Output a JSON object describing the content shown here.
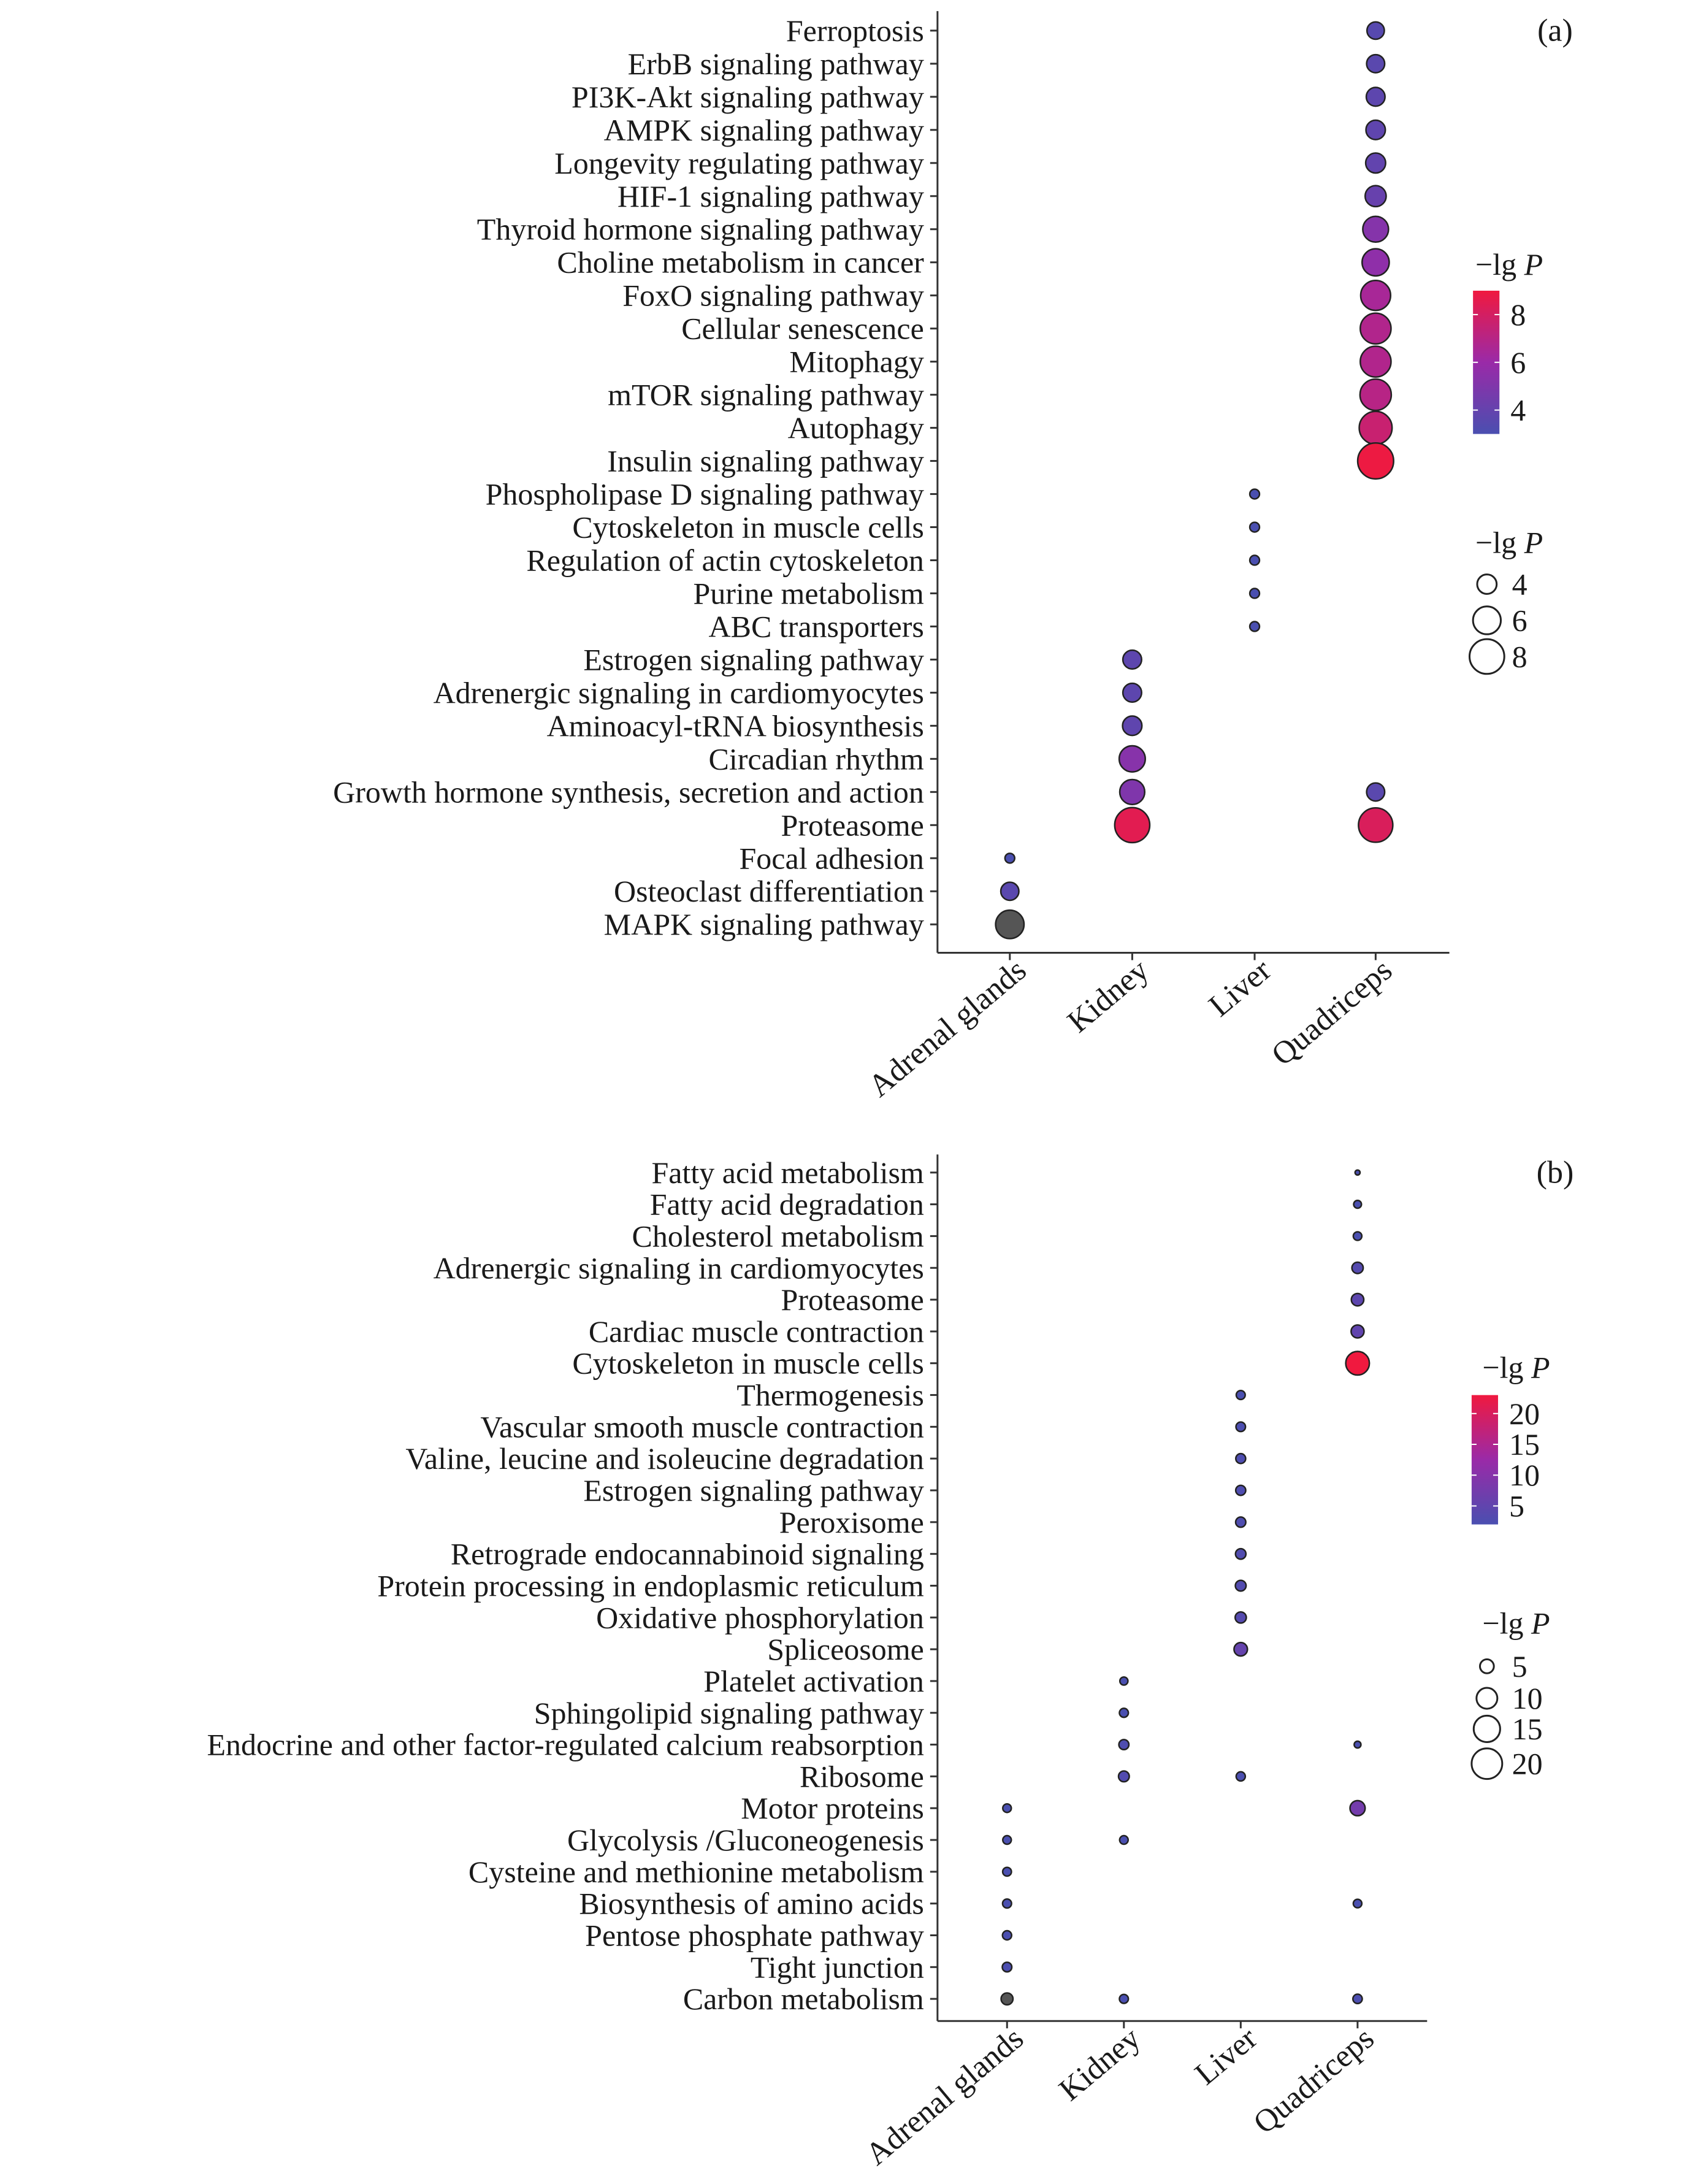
{
  "chart_data": [
    {
      "panel_label": "(a)",
      "type": "scatter",
      "x_categories": [
        "Adrenal glands",
        "Kidney",
        "Liver",
        "Quadriceps"
      ],
      "pathways": [
        "Ferroptosis",
        "ErbB signaling pathway",
        "PI3K-Akt signaling pathway",
        "AMPK signaling pathway",
        "Longevity regulating pathway",
        "HIF-1 signaling pathway",
        "Thyroid hormone signaling pathway",
        "Choline metabolism in cancer",
        "FoxO signaling pathway",
        "Cellular senescence",
        "Mitophagy",
        "mTOR signaling pathway",
        "Autophagy",
        "Insulin signaling pathway",
        "Phospholipase D signaling pathway",
        "Cytoskeleton in muscle cells",
        "Regulation of actin cytoskeleton",
        "Purine metabolism",
        "ABC transporters",
        "Estrogen signaling pathway",
        "Adrenergic signaling in cardiomyocytes",
        "Aminoacyl-tRNA biosynthesis",
        "Circadian rhythm",
        "Growth hormone synthesis, secretion and action",
        "Proteasome",
        "Focal adhesion",
        "Osteoclast differentiation",
        "MAPK signaling pathway"
      ],
      "points": [
        {
          "pathway": "Ferroptosis",
          "x": "Quadriceps",
          "value": 3.5
        },
        {
          "pathway": "ErbB signaling pathway",
          "x": "Quadriceps",
          "value": 3.6
        },
        {
          "pathway": "PI3K-Akt signaling pathway",
          "x": "Quadriceps",
          "value": 3.7
        },
        {
          "pathway": "AMPK signaling pathway",
          "x": "Quadriceps",
          "value": 3.8
        },
        {
          "pathway": "Longevity regulating pathway",
          "x": "Quadriceps",
          "value": 3.9
        },
        {
          "pathway": "HIF-1 signaling pathway",
          "x": "Quadriceps",
          "value": 4.1
        },
        {
          "pathway": "Thyroid hormone signaling pathway",
          "x": "Quadriceps",
          "value": 5.2
        },
        {
          "pathway": "Choline metabolism in cancer",
          "x": "Quadriceps",
          "value": 5.6
        },
        {
          "pathway": "FoxO signaling pathway",
          "x": "Quadriceps",
          "value": 6.5
        },
        {
          "pathway": "Cellular senescence",
          "x": "Quadriceps",
          "value": 6.8
        },
        {
          "pathway": "Mitophagy",
          "x": "Quadriceps",
          "value": 6.8
        },
        {
          "pathway": "mTOR signaling pathway",
          "x": "Quadriceps",
          "value": 7.0
        },
        {
          "pathway": "Autophagy",
          "x": "Quadriceps",
          "value": 7.6
        },
        {
          "pathway": "Insulin signaling pathway",
          "x": "Quadriceps",
          "value": 8.9
        },
        {
          "pathway": "Phospholipase D signaling pathway",
          "x": "Liver",
          "value": 2.2
        },
        {
          "pathway": "Cytoskeleton in muscle cells",
          "x": "Liver",
          "value": 2.4
        },
        {
          "pathway": "Regulation of actin cytoskeleton",
          "x": "Liver",
          "value": 2.5
        },
        {
          "pathway": "Purine metabolism",
          "x": "Liver",
          "value": 2.7
        },
        {
          "pathway": "ABC transporters",
          "x": "Liver",
          "value": 2.9
        },
        {
          "pathway": "Estrogen signaling pathway",
          "x": "Kidney",
          "value": 3.7
        },
        {
          "pathway": "Adrenergic signaling in cardiomyocytes",
          "x": "Kidney",
          "value": 3.7
        },
        {
          "pathway": "Aminoacyl-tRNA biosynthesis",
          "x": "Kidney",
          "value": 3.8
        },
        {
          "pathway": "Circadian rhythm",
          "x": "Kidney",
          "value": 5.3
        },
        {
          "pathway": "Growth hormone synthesis, secretion and action",
          "x": "Kidney",
          "value": 5.0
        },
        {
          "pathway": "Growth hormone synthesis, secretion and action",
          "x": "Quadriceps",
          "value": 3.6
        },
        {
          "pathway": "Proteasome",
          "x": "Kidney",
          "value": 8.5
        },
        {
          "pathway": "Proteasome",
          "x": "Quadriceps",
          "value": 8.2
        },
        {
          "pathway": "Focal adhesion",
          "x": "Adrenal glands",
          "value": 2.4
        },
        {
          "pathway": "Osteoclast differentiation",
          "x": "Adrenal glands",
          "value": 3.6
        },
        {
          "pathway": "MAPK signaling pathway",
          "x": "Adrenal glands",
          "value": 6.0,
          "color_override": "#555555"
        }
      ],
      "color_legend": {
        "title_prefix": "−lg",
        "title_var": "P",
        "min": 3,
        "max": 9,
        "ticks": [
          8,
          6,
          4
        ],
        "low_color": "#4a4fb0",
        "mid_color": "#9a2aa8",
        "high_color": "#f0193f"
      },
      "size_legend": {
        "title_prefix": "−lg",
        "title_var": "P",
        "ticks": [
          4,
          6,
          8
        ]
      }
    },
    {
      "panel_label": "(b)",
      "type": "scatter",
      "x_categories": [
        "Adrenal glands",
        "Kidney",
        "Liver",
        "Quadriceps"
      ],
      "pathways": [
        "Fatty acid metabolism",
        "Fatty acid degradation",
        "Cholesterol metabolism",
        "Adrenergic signaling in cardiomyocytes",
        "Proteasome",
        "Cardiac muscle contraction",
        "Cytoskeleton in muscle cells",
        "Thermogenesis",
        "Vascular smooth muscle contraction",
        "Valine, leucine and isoleucine degradation",
        "Estrogen signaling pathway",
        "Peroxisome",
        "Retrograde endocannabinoid signaling",
        "Protein processing in endoplasmic reticulum",
        "Oxidative phosphorylation",
        "Spliceosome",
        "Platelet activation",
        "Sphingolipid signaling pathway",
        "Endocrine and other factor-regulated calcium reabsorption",
        "Ribosome",
        "Motor proteins",
        "Glycolysis /Gluconeogenesis",
        "Cysteine and methionine metabolism",
        "Biosynthesis of amino acids",
        "Pentose phosphate pathway",
        "Tight junction",
        "Carbon metabolism"
      ],
      "points": [
        {
          "pathway": "Fatty acid metabolism",
          "x": "Quadriceps",
          "value": 1.0
        },
        {
          "pathway": "Fatty acid degradation",
          "x": "Quadriceps",
          "value": 1.5
        },
        {
          "pathway": "Cholesterol metabolism",
          "x": "Quadriceps",
          "value": 1.8
        },
        {
          "pathway": "Adrenergic signaling in cardiomyocytes",
          "x": "Quadriceps",
          "value": 3.5
        },
        {
          "pathway": "Proteasome",
          "x": "Quadriceps",
          "value": 4.5
        },
        {
          "pathway": "Cardiac muscle contraction",
          "x": "Quadriceps",
          "value": 5.0
        },
        {
          "pathway": "Cytoskeleton in muscle cells",
          "x": "Quadriceps",
          "value": 23.0
        },
        {
          "pathway": "Thermogenesis",
          "x": "Liver",
          "value": 2.0
        },
        {
          "pathway": "Vascular smooth muscle contraction",
          "x": "Liver",
          "value": 2.3
        },
        {
          "pathway": "Valine, leucine and isoleucine degradation",
          "x": "Liver",
          "value": 2.5
        },
        {
          "pathway": "Estrogen signaling pathway",
          "x": "Liver",
          "value": 2.6
        },
        {
          "pathway": "Peroxisome",
          "x": "Liver",
          "value": 2.7
        },
        {
          "pathway": "Retrograde endocannabinoid signaling",
          "x": "Liver",
          "value": 2.9
        },
        {
          "pathway": "Protein processing in endoplasmic reticulum",
          "x": "Liver",
          "value": 3.1
        },
        {
          "pathway": "Oxidative phosphorylation",
          "x": "Liver",
          "value": 3.4
        },
        {
          "pathway": "Spliceosome",
          "x": "Liver",
          "value": 5.5
        },
        {
          "pathway": "Platelet activation",
          "x": "Kidney",
          "value": 1.6
        },
        {
          "pathway": "Sphingolipid signaling pathway",
          "x": "Kidney",
          "value": 2.0
        },
        {
          "pathway": "Endocrine and other factor-regulated calcium reabsorption",
          "x": "Kidney",
          "value": 2.6
        },
        {
          "pathway": "Endocrine and other factor-regulated calcium reabsorption",
          "x": "Quadriceps",
          "value": 1.2
        },
        {
          "pathway": "Ribosome",
          "x": "Kidney",
          "value": 3.1
        },
        {
          "pathway": "Ribosome",
          "x": "Liver",
          "value": 2.1
        },
        {
          "pathway": "Motor proteins",
          "x": "Adrenal glands",
          "value": 1.8
        },
        {
          "pathway": "Motor proteins",
          "x": "Quadriceps",
          "value": 7.5
        },
        {
          "pathway": "Glycolysis /Gluconeogenesis",
          "x": "Adrenal glands",
          "value": 1.8
        },
        {
          "pathway": "Glycolysis /Gluconeogenesis",
          "x": "Kidney",
          "value": 1.8
        },
        {
          "pathway": "Cysteine and methionine metabolism",
          "x": "Adrenal glands",
          "value": 1.9
        },
        {
          "pathway": "Biosynthesis of amino acids",
          "x": "Adrenal glands",
          "value": 2.0
        },
        {
          "pathway": "Biosynthesis of amino acids",
          "x": "Quadriceps",
          "value": 1.8
        },
        {
          "pathway": "Pentose phosphate pathway",
          "x": "Adrenal glands",
          "value": 2.1
        },
        {
          "pathway": "Tight junction",
          "x": "Adrenal glands",
          "value": 2.3
        },
        {
          "pathway": "Carbon metabolism",
          "x": "Adrenal glands",
          "value": 4.0,
          "color_override": "#555555"
        },
        {
          "pathway": "Carbon metabolism",
          "x": "Kidney",
          "value": 2.0
        },
        {
          "pathway": "Carbon metabolism",
          "x": "Quadriceps",
          "value": 2.2
        }
      ],
      "color_legend": {
        "title_prefix": "−lg",
        "title_var": "P",
        "min": 2,
        "max": 23,
        "ticks": [
          20,
          15,
          10,
          5
        ],
        "low_color": "#4a4fb0",
        "mid_color": "#9a2aa8",
        "high_color": "#f0193f"
      },
      "size_legend": {
        "title_prefix": "−lg",
        "title_var": "P",
        "ticks": [
          5,
          10,
          15,
          20
        ]
      }
    }
  ]
}
